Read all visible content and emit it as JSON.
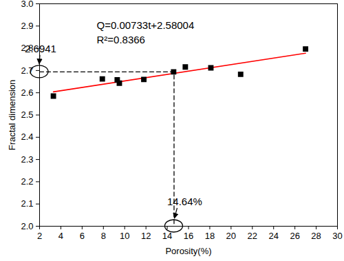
{
  "chart_data": {
    "type": "scatter",
    "x_label": "Porosity(%)",
    "y_label": "Fractal dimension",
    "x": [
      3.3,
      7.9,
      9.3,
      9.5,
      11.8,
      14.6,
      15.7,
      18.1,
      20.9,
      27.0
    ],
    "values": [
      2.585,
      2.662,
      2.658,
      2.643,
      2.66,
      2.694,
      2.716,
      2.712,
      2.683,
      2.797
    ],
    "color": "#000000",
    "marker": "square",
    "fit_line": {
      "type": "line",
      "x": [
        3.3,
        27.0
      ],
      "values": [
        2.604,
        2.778
      ],
      "color": "#ff0000",
      "equation": "Q=0.00733t+2.58004",
      "r_squared_label": "R²=0.8366"
    },
    "reference": {
      "x": 14.64,
      "y": 2.6941,
      "x_label": "14.64%",
      "y_label": "2.6941",
      "line_style": "dashed"
    },
    "xlim": [
      2,
      30
    ],
    "xticks": [
      2,
      4,
      6,
      8,
      10,
      12,
      14,
      16,
      18,
      20,
      22,
      24,
      26,
      28,
      30
    ],
    "ylim": [
      2.0,
      3.0
    ],
    "yticks": [
      {
        "value": 2.0,
        "label": "2.0"
      },
      2.1,
      2.2,
      2.3,
      2.4,
      2.5,
      2.6,
      2.7,
      2.8,
      2.9,
      {
        "value": 3.0,
        "label": "3.0"
      }
    ],
    "grid": false
  }
}
